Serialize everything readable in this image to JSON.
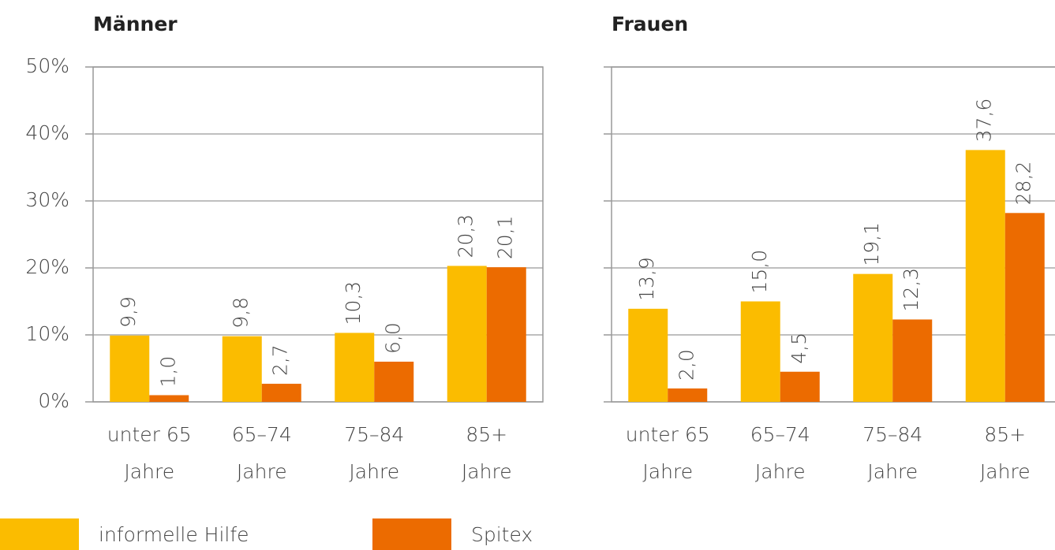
{
  "chart_data": [
    {
      "type": "bar",
      "title": "Männer",
      "categories": [
        [
          "unter 65",
          "Jahre"
        ],
        [
          "65–74",
          "Jahre"
        ],
        [
          "75–84",
          "Jahre"
        ],
        [
          "85+",
          "Jahre"
        ]
      ],
      "series": [
        {
          "name": "informelle Hilfe",
          "color": "#fbbc00",
          "values": [
            9.9,
            9.8,
            10.3,
            20.3
          ],
          "value_labels": [
            "9,9",
            "9,8",
            "10,3",
            "20,3"
          ]
        },
        {
          "name": "Spitex",
          "color": "#ec6b00",
          "values": [
            1.0,
            2.7,
            6.0,
            20.1
          ],
          "value_labels": [
            "1,0",
            "2,7",
            "6,0",
            "20,1"
          ]
        }
      ],
      "ylim": [
        0,
        50
      ],
      "yticks": [
        {
          "value": 0,
          "label": "0%"
        },
        {
          "value": 10,
          "label": "10%"
        },
        {
          "value": 20,
          "label": "20%"
        },
        {
          "value": 30,
          "label": "30%"
        },
        {
          "value": 40,
          "label": "40%"
        },
        {
          "value": 50,
          "label": "50%"
        }
      ],
      "grid": true
    },
    {
      "type": "bar",
      "title": "Frauen",
      "categories": [
        [
          "unter 65",
          "Jahre"
        ],
        [
          "65–74",
          "Jahre"
        ],
        [
          "75–84",
          "Jahre"
        ],
        [
          "85+",
          "Jahre"
        ]
      ],
      "series": [
        {
          "color": "#fbbc00",
          "values": [
            13.9,
            15.0,
            19.1,
            37.6
          ],
          "value_labels": [
            "13,9",
            "15,0",
            "19,1",
            "37,6"
          ]
        },
        {
          "color": "#ec6b00",
          "values": [
            2.0,
            4.5,
            12.3,
            28.2
          ],
          "value_labels": [
            "2,0",
            "4,5",
            "12,3",
            "28,2"
          ]
        }
      ],
      "ylim": [
        0,
        50
      ],
      "yticks": [
        0,
        10,
        20,
        30,
        40,
        50
      ],
      "grid": true
    }
  ]
}
